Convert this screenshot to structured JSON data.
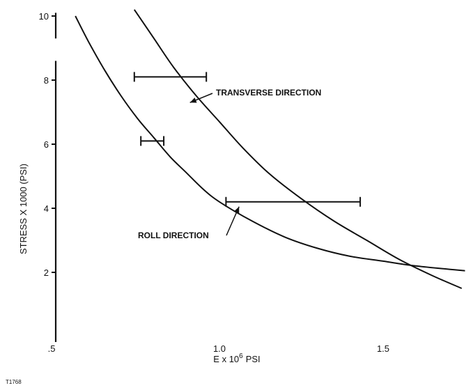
{
  "figure_id": "T1768",
  "chart_data": {
    "type": "line",
    "title": "",
    "xlabel": "E x 10",
    "xlabel_superscript": "6",
    "xlabel_unit": "PSI",
    "ylabel": "STRESS X 1000 (PSI)",
    "xlim": [
      0.5,
      1.75
    ],
    "ylim": [
      0,
      10
    ],
    "xticks": [
      {
        "value": 0.5,
        "label": ".5"
      },
      {
        "value": 1.0,
        "label": "1.0"
      },
      {
        "value": 1.5,
        "label": "1.5"
      }
    ],
    "yticks": [
      {
        "value": 2,
        "label": "2"
      },
      {
        "value": 4,
        "label": "4"
      },
      {
        "value": 6,
        "label": "6"
      },
      {
        "value": 8,
        "label": "8"
      },
      {
        "value": 10,
        "label": "10"
      }
    ],
    "grid": false,
    "legend": "none",
    "series": [
      {
        "name": "TRANSVERSE DIRECTION",
        "x": [
          0.74,
          0.8,
          0.86,
          0.93,
          1.0,
          1.07,
          1.15,
          1.25,
          1.35,
          1.45,
          1.55,
          1.65,
          1.74
        ],
        "y": [
          10.2,
          9.3,
          8.4,
          7.5,
          6.7,
          5.9,
          5.1,
          4.3,
          3.6,
          3.0,
          2.4,
          1.9,
          1.5
        ]
      },
      {
        "name": "ROLL DIRECTION",
        "x": [
          0.56,
          0.6,
          0.65,
          0.7,
          0.75,
          0.8,
          0.85,
          0.9,
          0.95,
          1.0,
          1.1,
          1.2,
          1.3,
          1.4,
          1.5,
          1.6,
          1.75
        ],
        "y": [
          10.0,
          9.2,
          8.3,
          7.5,
          6.8,
          6.2,
          5.6,
          5.1,
          4.6,
          4.2,
          3.6,
          3.1,
          2.75,
          2.5,
          2.35,
          2.2,
          2.05
        ]
      }
    ],
    "ranges": [
      {
        "y": 8.1,
        "x_min": 0.74,
        "x_max": 0.96
      },
      {
        "y": 6.1,
        "x_min": 0.76,
        "x_max": 0.83
      },
      {
        "y": 4.2,
        "x_min": 1.02,
        "x_max": 1.43
      }
    ],
    "annotations": [
      {
        "text": "TRANSVERSE DIRECTION",
        "series": "TRANSVERSE DIRECTION",
        "at_x": 0.91,
        "at_y": 7.3
      },
      {
        "text": "ROLL DIRECTION",
        "series": "ROLL DIRECTION",
        "at_x": 1.06,
        "at_y": 4.05
      }
    ]
  }
}
